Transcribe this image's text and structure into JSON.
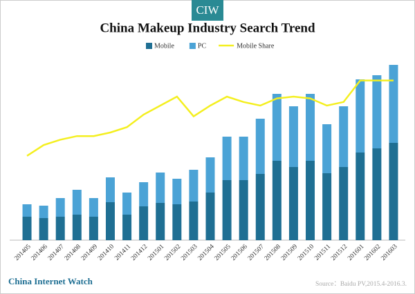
{
  "badge": "CIW",
  "chart_data": {
    "type": "bar",
    "title": "China Makeup Industry Search Trend",
    "categories": [
      "201405",
      "201406",
      "201407",
      "201408",
      "201409",
      "201410",
      "201411",
      "201412",
      "201501",
      "201502",
      "201503",
      "201504",
      "201505",
      "201506",
      "201507",
      "201508",
      "201509",
      "201510",
      "201511",
      "201512",
      "201601",
      "201602",
      "201603"
    ],
    "series": [
      {
        "name": "Mobile",
        "color": "#1f6f93",
        "values": [
          34,
          32,
          34,
          37,
          34,
          55,
          37,
          49,
          54,
          52,
          56,
          69,
          87,
          87,
          96,
          115,
          106,
          115,
          97,
          106,
          127,
          133,
          141
        ]
      },
      {
        "name": "PC",
        "color": "#4ba3d6",
        "values": [
          18,
          18,
          27,
          36,
          27,
          36,
          32,
          35,
          44,
          37,
          46,
          51,
          63,
          63,
          80,
          97,
          88,
          97,
          71,
          88,
          106,
          106,
          113
        ]
      },
      {
        "name": "Mobile Share",
        "type": "line",
        "axis": "y2",
        "color": "#f4ef1f",
        "values": [
          47,
          53,
          56,
          58,
          58,
          60,
          63,
          70,
          75,
          80,
          69,
          75,
          80,
          77,
          75,
          79,
          80,
          79,
          75,
          77,
          89,
          89,
          89
        ]
      }
    ],
    "ylim": [
      0,
      260
    ],
    "y2lim": [
      0,
      100
    ],
    "stacked": true,
    "legend": "top"
  },
  "footer": {
    "brand": "China Internet Watch",
    "source": "Source：Baidu PV,2015.4-2016.3."
  }
}
